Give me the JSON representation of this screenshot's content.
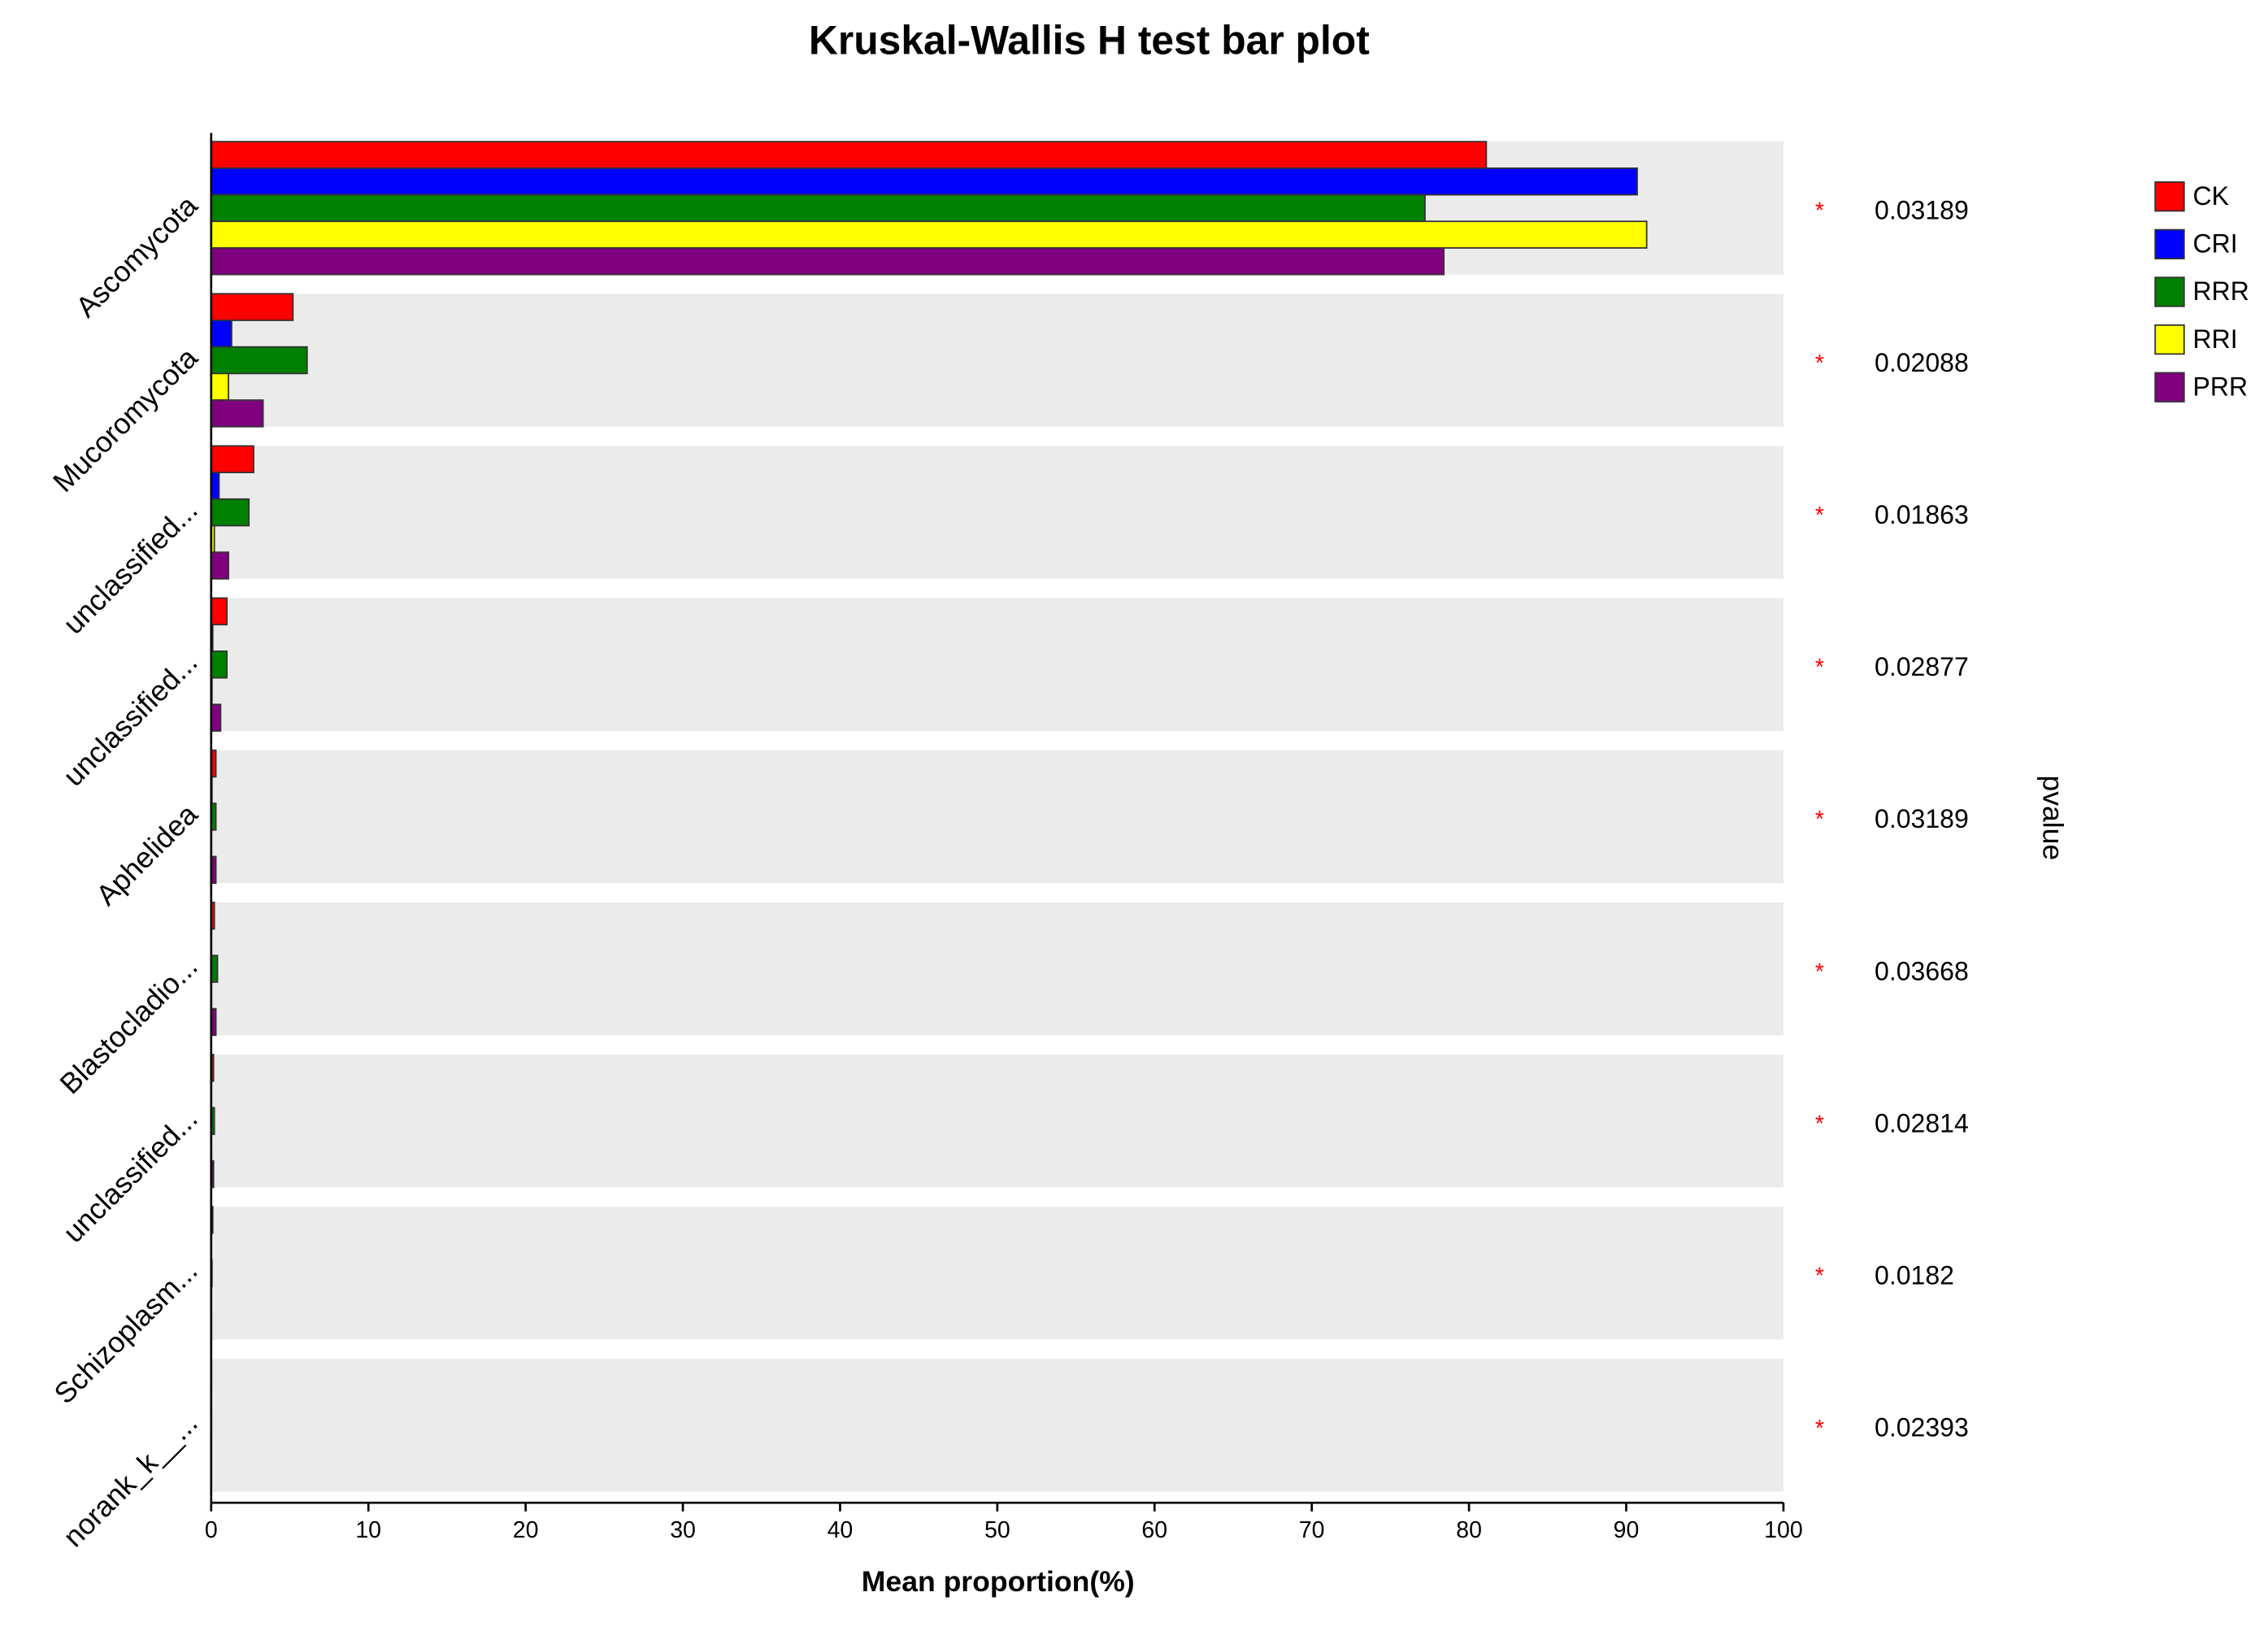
{
  "chart_data": {
    "type": "bar",
    "orientation": "horizontal",
    "title": "Kruskal-Wallis H test bar plot",
    "x_label": "Mean proportion(%)",
    "right_label": "pvalue",
    "categories": [
      "Ascomycota",
      "Mucoromycota",
      "unclassified...",
      "unclassified...",
      "Aphelidea",
      "Blastocladio...",
      "unclassified...",
      "Schizoplasm...",
      "norank_k__..."
    ],
    "series": [
      {
        "name": "CK",
        "color": "#ff0000",
        "values": [
          81.1,
          5.2,
          2.7,
          1.0,
          0.3,
          0.2,
          0.15,
          0.1,
          0.02
        ]
      },
      {
        "name": "CRI",
        "color": "#0000ff",
        "values": [
          90.7,
          1.3,
          0.5,
          0.1,
          0.05,
          0.02,
          0.02,
          0.01,
          0.01
        ]
      },
      {
        "name": "RRR",
        "color": "#008000",
        "values": [
          77.2,
          6.1,
          2.4,
          1.0,
          0.3,
          0.4,
          0.2,
          0.05,
          0.02
        ]
      },
      {
        "name": "RRI",
        "color": "#ffff00",
        "values": [
          91.3,
          1.1,
          0.2,
          0.05,
          0.02,
          0.02,
          0.02,
          0.01,
          0.01
        ]
      },
      {
        "name": "PRR",
        "color": "#800080",
        "values": [
          78.4,
          3.3,
          1.1,
          0.6,
          0.3,
          0.3,
          0.15,
          0.02,
          0.01
        ]
      }
    ],
    "significance": [
      "*",
      "*",
      "*",
      "*",
      "*",
      "*",
      "*",
      "*",
      "*"
    ],
    "pvalues": [
      0.03189,
      0.02088,
      0.01863,
      0.02877,
      0.03189,
      0.03668,
      0.02814,
      0.0182,
      0.02393
    ],
    "xlim": [
      0,
      100
    ],
    "xticks": [
      0,
      10,
      20,
      30,
      40,
      50,
      60,
      70,
      80,
      90,
      100
    ],
    "band_color": "#ebebeb",
    "legend": "top-right"
  }
}
